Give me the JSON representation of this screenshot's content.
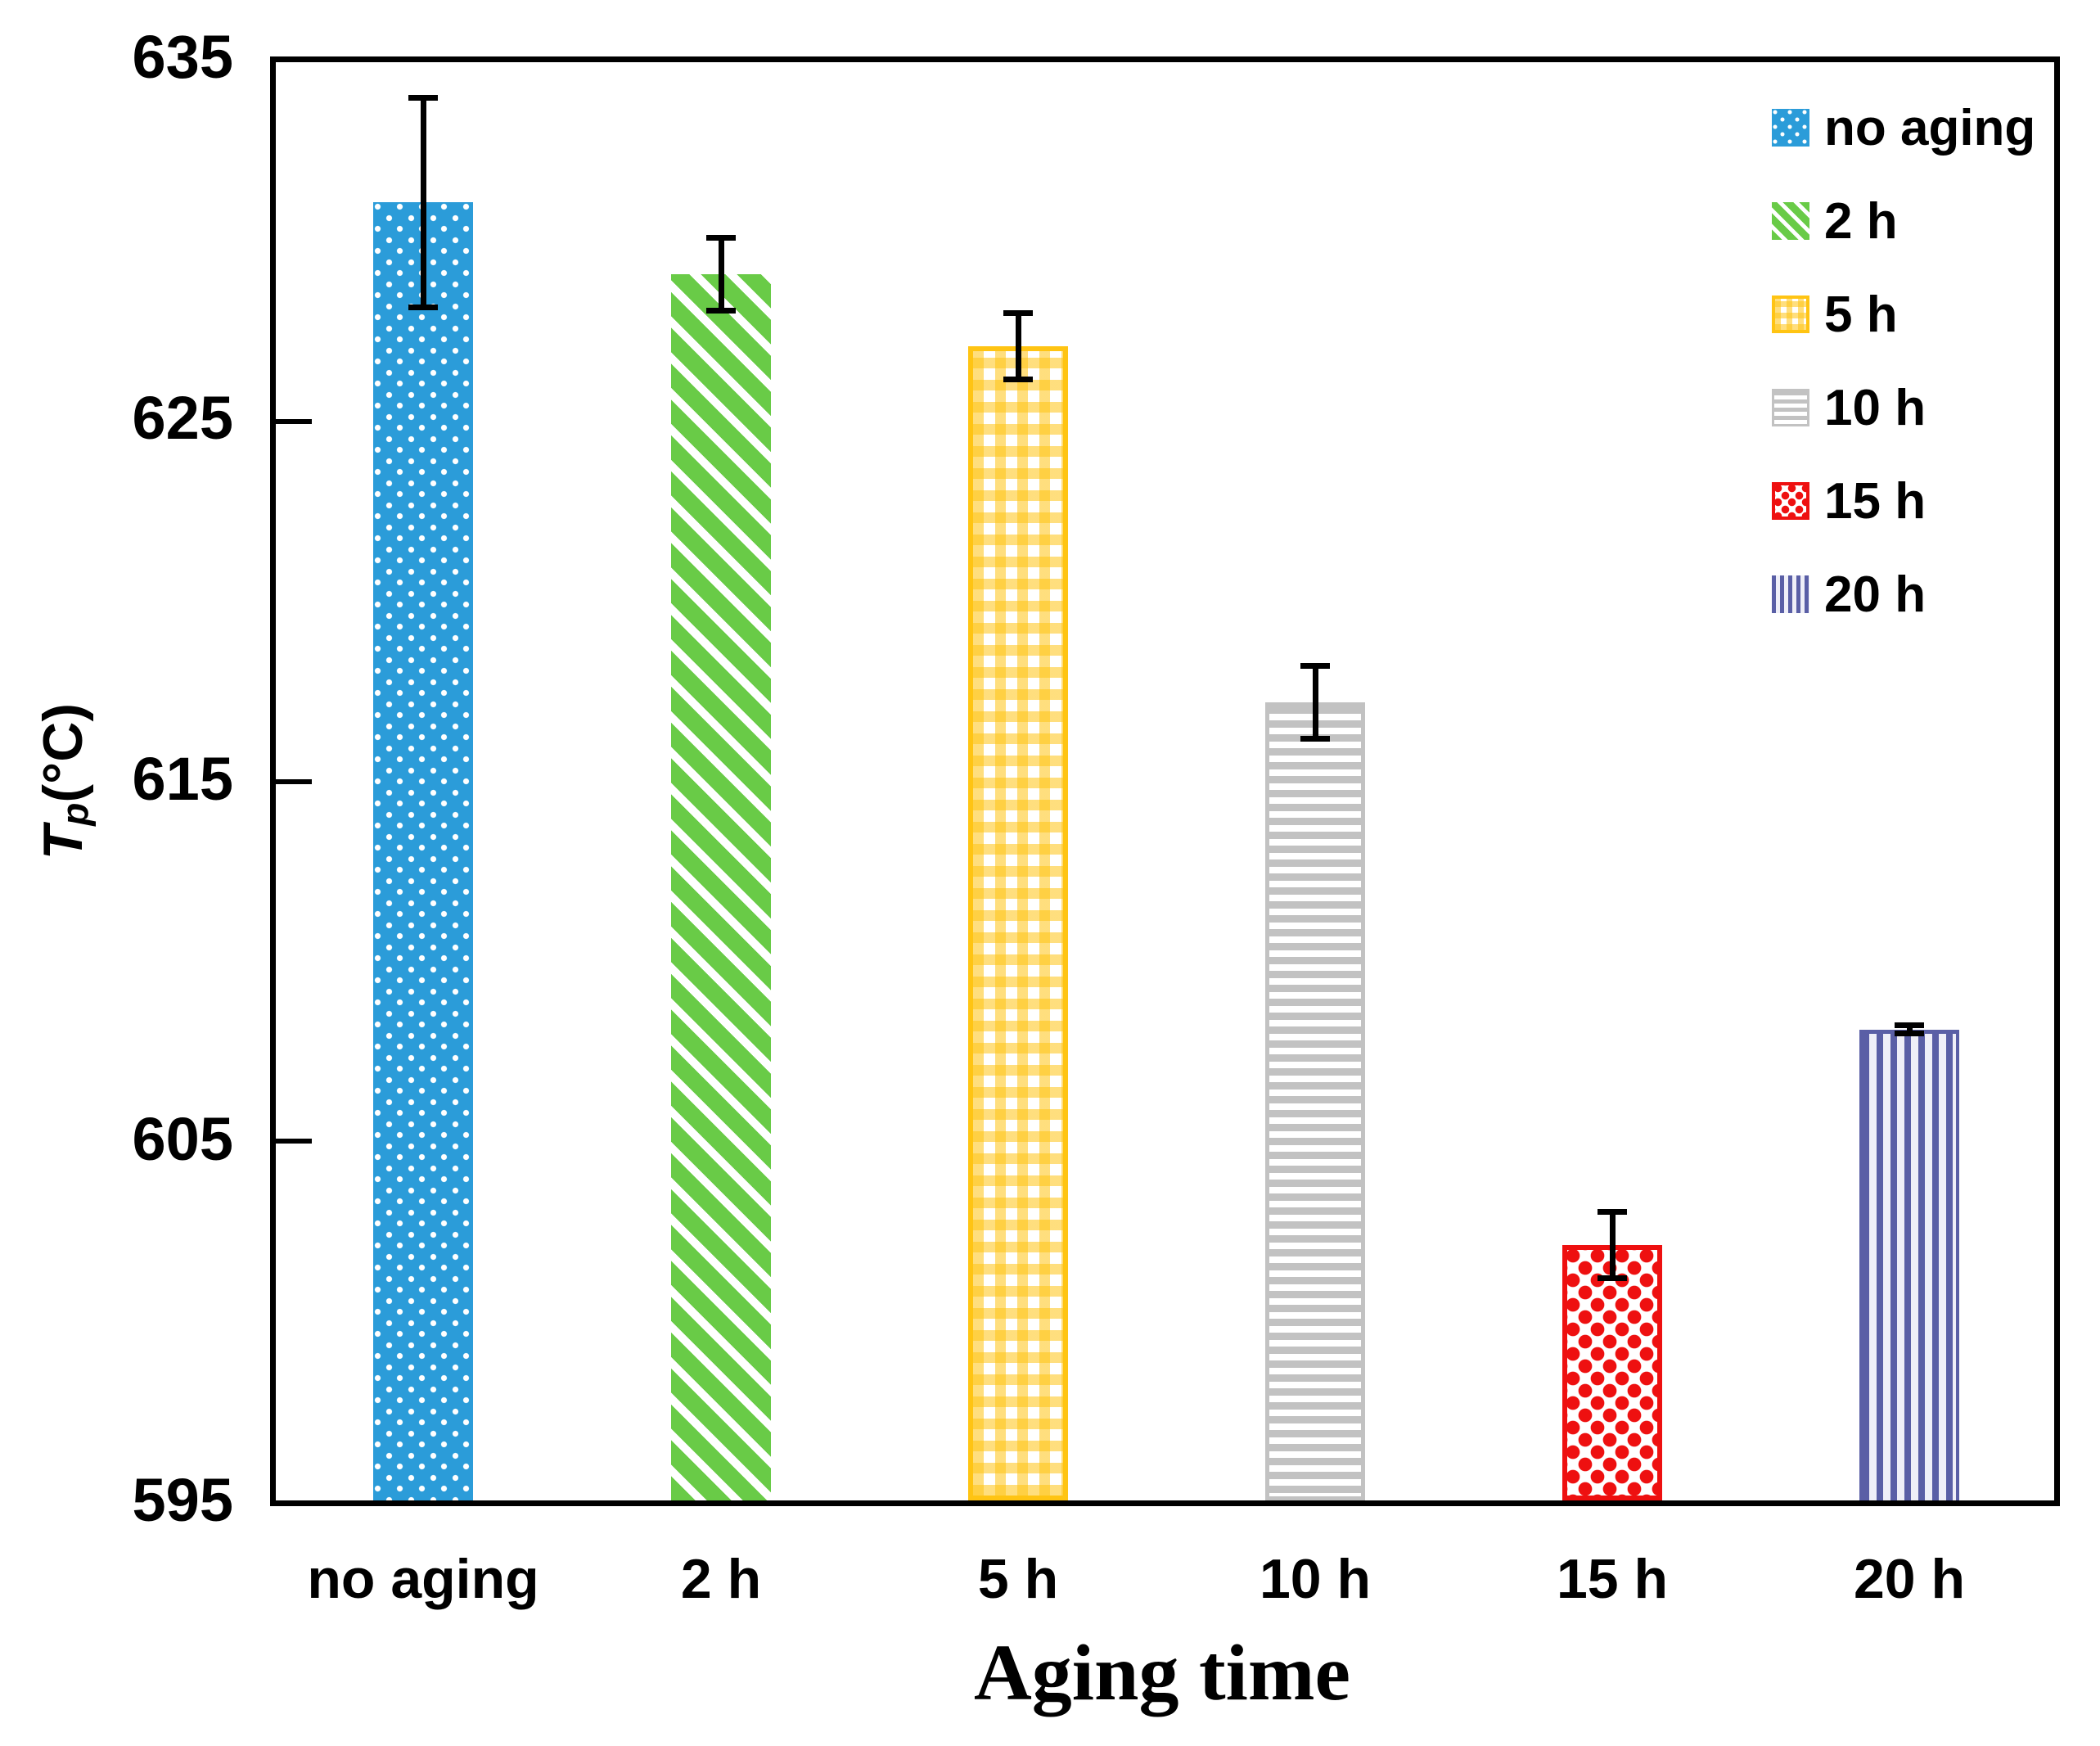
{
  "chart_data": {
    "type": "bar",
    "title": "",
    "xlabel": "Aging time",
    "ylabel": {
      "symbol": "T",
      "subscript": "p",
      "unit": "(°C)"
    },
    "ylim": [
      595,
      635
    ],
    "yticks": [
      635,
      625,
      615,
      605,
      595
    ],
    "categories": [
      "no aging",
      "2 h",
      "5 h",
      "10 h",
      "15 h",
      "20 h"
    ],
    "values": [
      631.1,
      629.1,
      627.1,
      617.2,
      602.1,
      608.1
    ],
    "errors": [
      3.0,
      1.1,
      1.0,
      1.1,
      1.0,
      0.2
    ],
    "bar_colors": [
      "#2B9CD9",
      "#69CB47",
      "#FFC413",
      "#C2C2C2",
      "#EE1010",
      "#5A5FA6"
    ],
    "patterns": [
      "white-dots",
      "diagonal-stripes",
      "open-weave",
      "horizontal-stripes",
      "red-dots",
      "vertical-stripes"
    ],
    "error_bar_color": "#000000",
    "grid": "off",
    "legend": {
      "position": "top-right",
      "items": [
        "no aging",
        "2 h",
        "5 h",
        "10 h",
        "15 h",
        "20 h"
      ]
    }
  }
}
